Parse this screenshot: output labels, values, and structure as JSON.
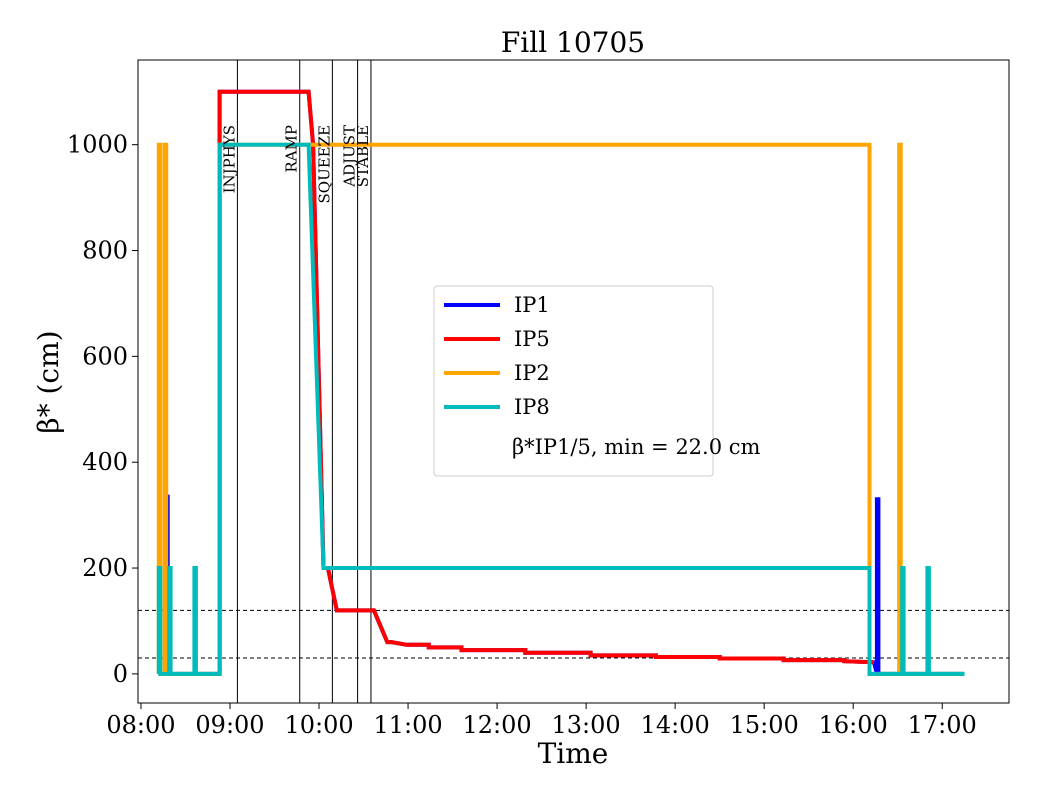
{
  "chart_data": {
    "type": "line",
    "title": "Fill 10705",
    "xlabel": "Time",
    "ylabel": "β* (cm)",
    "xlim": [
      "07:58",
      "17:45"
    ],
    "ylim": [
      -55,
      1160
    ],
    "x_ticks": [
      "08:00",
      "09:00",
      "10:00",
      "11:00",
      "12:00",
      "13:00",
      "14:00",
      "15:00",
      "16:00",
      "17:00"
    ],
    "y_ticks": [
      0,
      200,
      400,
      600,
      800,
      1000
    ],
    "grid": false,
    "legend_position": "center",
    "legend_note": "β*IP1/5, min = 22.0 cm",
    "phases": [
      {
        "label": "INJPHYS",
        "time": "09:05"
      },
      {
        "label": "RAMP",
        "time": "09:47"
      },
      {
        "label": "SQUEEZE",
        "time": "10:09"
      },
      {
        "label": "ADJUST",
        "time": "10:26"
      },
      {
        "label": "STABLE",
        "time": "10:35"
      }
    ],
    "reference_lines": [
      120,
      30
    ],
    "series": [
      {
        "name": "IP1",
        "color": "#0000ff",
        "x": [
          "08:16",
          "08:17",
          "08:17",
          "08:18",
          "08:18",
          "08:53",
          "08:53",
          "09:53",
          "09:56",
          "10:03",
          "10:03",
          "10:06",
          "10:12",
          "10:12",
          "10:17",
          "10:21",
          "10:37",
          "10:46",
          "10:49",
          "10:59",
          "11:14",
          "11:14",
          "11:36",
          "11:36",
          "12:19",
          "12:19",
          "13:03",
          "13:03",
          "13:47",
          "13:47",
          "14:30",
          "14:30",
          "15:13",
          "15:13",
          "15:54",
          "15:54",
          "16:14",
          "16:16",
          "16:16",
          "16:17",
          "16:17",
          "16:18",
          "17:15"
        ],
        "y": [
          0,
          0,
          335,
          335,
          0,
          0,
          1100,
          1100,
          1000,
          200,
          200,
          200,
          120,
          120,
          120,
          120,
          120,
          60,
          60,
          55,
          55,
          50,
          50,
          45,
          45,
          40,
          40,
          35,
          35,
          32,
          32,
          29,
          29,
          26,
          26,
          24,
          22,
          0,
          330,
          330,
          0,
          0,
          0
        ]
      },
      {
        "name": "IP5",
        "color": "#ff0000",
        "x": [
          "08:53",
          "08:53",
          "09:53",
          "09:56",
          "10:03",
          "10:03",
          "10:06",
          "10:12",
          "10:12",
          "10:17",
          "10:21",
          "10:37",
          "10:46",
          "10:49",
          "10:59",
          "11:14",
          "11:14",
          "11:36",
          "11:36",
          "12:19",
          "12:19",
          "13:03",
          "13:03",
          "13:47",
          "13:47",
          "14:30",
          "14:30",
          "15:13",
          "15:13",
          "15:54",
          "15:54",
          "16:14"
        ],
        "y": [
          0,
          1100,
          1100,
          1000,
          200,
          200,
          200,
          120,
          120,
          120,
          120,
          120,
          60,
          60,
          55,
          55,
          50,
          50,
          45,
          45,
          40,
          40,
          35,
          35,
          32,
          32,
          29,
          29,
          26,
          26,
          24,
          22
        ]
      },
      {
        "name": "IP2",
        "color": "#ffa500",
        "x": [
          "08:12",
          "08:12",
          "08:13",
          "08:13",
          "08:16",
          "08:16",
          "08:17",
          "08:17",
          "08:53",
          "08:53",
          "16:11",
          "16:11",
          "16:31",
          "16:31",
          "16:32",
          "16:32",
          "17:15"
        ],
        "y": [
          0,
          1000,
          1000,
          0,
          0,
          1000,
          1000,
          0,
          0,
          1000,
          1000,
          0,
          0,
          1000,
          1000,
          0,
          0
        ]
      },
      {
        "name": "IP8",
        "color": "#00bbbb",
        "x": [
          "08:12",
          "08:12",
          "08:13",
          "08:13",
          "08:19",
          "08:19",
          "08:20",
          "08:20",
          "08:36",
          "08:36",
          "08:37",
          "08:37",
          "08:53",
          "08:53",
          "09:53",
          "10:03",
          "16:11",
          "16:11",
          "16:33",
          "16:33",
          "16:34",
          "16:34",
          "16:50",
          "16:50",
          "16:51",
          "16:51",
          "17:15"
        ],
        "y": [
          0,
          200,
          200,
          0,
          0,
          200,
          200,
          0,
          0,
          200,
          200,
          0,
          0,
          1000,
          1000,
          200,
          200,
          0,
          0,
          200,
          200,
          0,
          0,
          200,
          200,
          0,
          0
        ]
      }
    ]
  }
}
